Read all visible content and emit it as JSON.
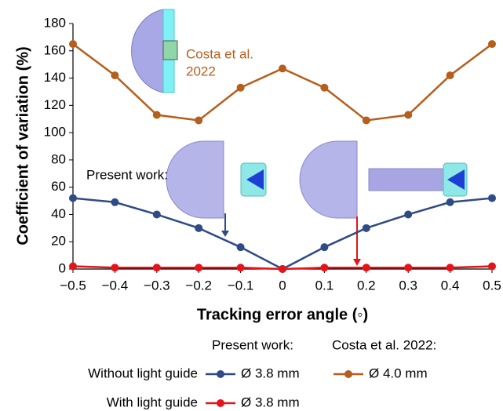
{
  "chart_data": {
    "type": "line",
    "x_label": "Tracking error angle (◦)",
    "y_label": "Coefficient of variation (%)",
    "x": [
      -0.5,
      -0.4,
      -0.3,
      -0.2,
      -0.1,
      0,
      0.1,
      0.2,
      0.3,
      0.4,
      0.5
    ],
    "series": [
      {
        "name": "Ø 3.8 mm",
        "color": "#2f4b85",
        "values": [
          52,
          49,
          40,
          30,
          16,
          0,
          16,
          30,
          40,
          49,
          52
        ]
      },
      {
        "name": "Ø 4.0 mm",
        "color": "#b65e1c",
        "values": [
          165,
          142,
          113,
          109,
          133,
          147,
          133,
          109,
          113,
          142,
          165
        ]
      },
      {
        "name": "Ø 3.8 mm",
        "color": "#e3151b",
        "values": [
          2,
          1,
          1,
          1,
          1,
          0,
          1,
          1,
          1,
          1,
          2
        ]
      }
    ],
    "xlim": [
      -0.5,
      0.5
    ],
    "xticks": [
      {
        "value": -0.5,
        "label": "−0.5"
      },
      {
        "value": -0.4,
        "label": "−0.4"
      },
      {
        "value": -0.3,
        "label": "−0.3"
      },
      {
        "value": -0.2,
        "label": "−0.2"
      },
      {
        "value": -0.1,
        "label": "−0.1"
      },
      0,
      0.1,
      0.2,
      0.3,
      0.4,
      0.5
    ],
    "ylim": [
      0,
      180
    ],
    "yticks": [
      0,
      20,
      40,
      60,
      80,
      100,
      120,
      140,
      160,
      180
    ],
    "annotations": [
      "Costa et al.",
      "2022",
      "Present work:"
    ],
    "legend": {
      "column_headers": [
        "Present work:",
        "Costa et al. 2022:"
      ],
      "row_labels": [
        "Without light guide",
        "With light guide"
      ]
    }
  }
}
